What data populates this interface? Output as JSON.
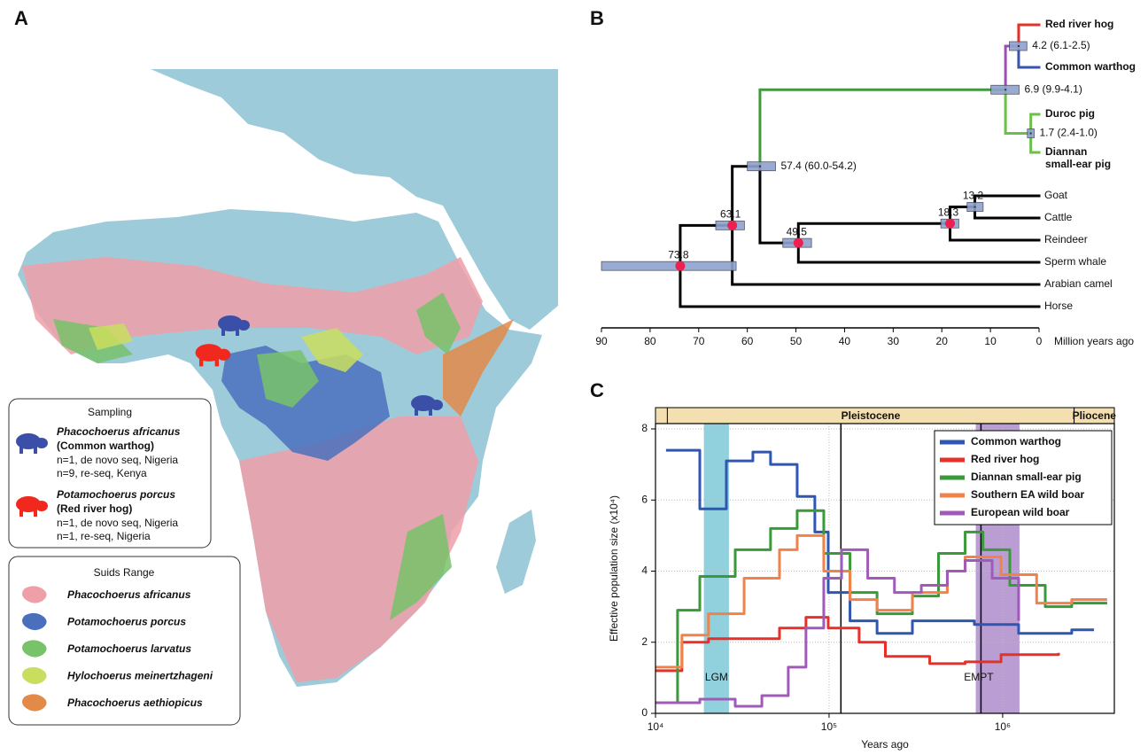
{
  "panel_a": {
    "label": "A",
    "sampling": {
      "title": "Sampling",
      "entries": [
        {
          "species": "Phacochoerus africanus",
          "common_name": "(Common warthog)",
          "color": "#3b4fa8",
          "lines": [
            "n=1, de novo seq, Nigeria",
            "n=9, re-seq, Kenya"
          ]
        },
        {
          "species": "Potamochoerus porcus",
          "common_name": "(Red river hog)",
          "color": "#f0281e",
          "lines": [
            "n=1, de novo seq, Nigeria",
            "n=1, re-seq, Nigeria"
          ]
        }
      ]
    },
    "range": {
      "title": "Suids Range",
      "entries": [
        {
          "name": "Phacochoerus africanus",
          "color": "#ee9fa8"
        },
        {
          "name": "Potamochoerus porcus",
          "color": "#4a70bd"
        },
        {
          "name": "Potamochoerus larvatus",
          "color": "#78c26a"
        },
        {
          "name": "Hylochoerus meinertzhageni",
          "color": "#c9de5e"
        },
        {
          "name": "Phacochoerus aethiopicus",
          "color": "#e38a48"
        }
      ]
    }
  },
  "panel_b": {
    "label": "B",
    "axis_label": "Million years ago",
    "xlim": [
      90,
      0
    ],
    "xticks": [
      90,
      80,
      70,
      60,
      50,
      40,
      30,
      20,
      10,
      0
    ],
    "taxa": [
      {
        "name": [
          "Red river hog"
        ],
        "bold": true,
        "color": "#e8302a"
      },
      {
        "name": [
          "Common warthog"
        ],
        "bold": true,
        "color": "#3a55a8"
      },
      {
        "name": [
          "Duroc pig"
        ],
        "bold": true,
        "color": "#6cbf4a"
      },
      {
        "name": [
          "Diannan",
          "small-ear pig"
        ],
        "bold": true,
        "color": "#6cbf4a"
      },
      {
        "name": [
          "Goat"
        ],
        "bold": false,
        "color": "#000000"
      },
      {
        "name": [
          "Cattle"
        ],
        "bold": false,
        "color": "#000000"
      },
      {
        "name": [
          "Reindeer"
        ],
        "bold": false,
        "color": "#000000"
      },
      {
        "name": [
          "Sperm whale"
        ],
        "bold": false,
        "color": "#000000"
      },
      {
        "name": [
          "Arabian camel"
        ],
        "bold": false,
        "color": "#000000"
      },
      {
        "name": [
          "Horse"
        ],
        "bold": false,
        "color": "#000000"
      }
    ],
    "nodes": [
      {
        "age": 4.2,
        "ci": [
          6.1,
          2.5
        ],
        "label": "4.2 (6.1-2.5)",
        "calibrated": false,
        "color": "#9b4fb0"
      },
      {
        "age": 1.7,
        "ci": [
          2.4,
          1.0
        ],
        "label": "1.7 (2.4-1.0)",
        "calibrated": false,
        "color": "#6cbf4a"
      },
      {
        "age": 6.9,
        "ci": [
          9.9,
          4.1
        ],
        "label": "6.9 (9.9-4.1)",
        "calibrated": false,
        "color": "#3f9a3f"
      },
      {
        "age": 13.2,
        "ci": [
          14.8,
          11.5
        ],
        "label": "13.2",
        "calibrated": false,
        "color": "#000000"
      },
      {
        "age": 18.3,
        "ci": [
          20.2,
          16.5
        ],
        "label": "18.3",
        "calibrated": true,
        "color": "#000000"
      },
      {
        "age": 49.5,
        "ci": [
          52.7,
          46.8
        ],
        "label": "49.5",
        "calibrated": true,
        "color": "#000000"
      },
      {
        "age": 57.4,
        "ci": [
          60.0,
          54.2
        ],
        "label": "57.4 (60.0-54.2)",
        "calibrated": false,
        "color": "#000000"
      },
      {
        "age": 63.1,
        "ci": [
          66.5,
          60.6
        ],
        "label": "63.1",
        "calibrated": true,
        "color": "#000000"
      },
      {
        "age": 73.8,
        "ci": [
          90.0,
          62.3
        ],
        "label": "73.8",
        "calibrated": true,
        "color": "#000000"
      }
    ]
  },
  "chart_data": {
    "type": "step",
    "label": "C",
    "x_label": "Years ago",
    "y_label": "Effective population size (x10⁴)",
    "log_x": true,
    "grid": true,
    "xlim": [
      10000,
      4400000
    ],
    "ylim": [
      0,
      8.15
    ],
    "xticks": [
      {
        "value": 10000,
        "label": "10⁴"
      },
      {
        "value": 100000,
        "label": "10⁵"
      },
      {
        "value": 1000000,
        "label": "10⁶"
      }
    ],
    "yticks": [
      0,
      2,
      4,
      6,
      8
    ],
    "epochs": [
      {
        "name": "Pleistocene",
        "start": 11700,
        "end": 2580000
      },
      {
        "name": "Pliocene",
        "start": 2580000,
        "end": 4400000
      }
    ],
    "bands": [
      {
        "label": "LGM",
        "start": 19000,
        "end": 26500,
        "color": "#6cc2d2"
      },
      {
        "label": "EMPT",
        "start": 700000,
        "end": 1250000,
        "color": "#a27cc4"
      }
    ],
    "reference_lines": [
      117000,
      750000
    ],
    "legend": "upper right",
    "series": [
      {
        "name": "Common warthog",
        "color": "#2f56b0",
        "x": [
          11500,
          18000,
          25600,
          36400,
          46000,
          65500,
          82800,
          98900,
          132000,
          189000,
          302000,
          687000,
          1236000,
          2500000,
          3360000
        ],
        "values": [
          7.4,
          5.75,
          7.1,
          7.35,
          7.0,
          6.1,
          5.1,
          3.4,
          2.6,
          2.25,
          2.6,
          2.5,
          2.25,
          2.35,
          2.35
        ]
      },
      {
        "name": "Red river hog",
        "color": "#e8302a",
        "x": [
          10000,
          14200,
          20200,
          51800,
          73600,
          98900,
          149000,
          211000,
          380000,
          608000,
          979000,
          2100000
        ],
        "values": [
          1.2,
          2.0,
          2.1,
          2.4,
          2.7,
          2.4,
          2.0,
          1.6,
          1.4,
          1.45,
          1.65,
          1.7
        ]
      },
      {
        "name": "Diannan small-ear pig",
        "color": "#3a9a3a",
        "x": [
          10000,
          13400,
          18000,
          28800,
          46000,
          65500,
          93200,
          132000,
          189000,
          302000,
          427000,
          608000,
          770000,
          1100000,
          1760000,
          2500000,
          4000000
        ],
        "values": [
          0.3,
          2.9,
          3.85,
          4.6,
          5.2,
          5.7,
          4.5,
          3.4,
          2.8,
          3.3,
          4.5,
          5.1,
          4.6,
          3.6,
          3.0,
          3.1,
          3.1
        ]
      },
      {
        "name": "Southern EA wild boar",
        "color": "#f0824a",
        "x": [
          10000,
          14200,
          20200,
          32400,
          51800,
          65500,
          93200,
          132000,
          189000,
          302000,
          480000,
          608000,
          979000,
          1570000,
          2500000,
          4000000
        ],
        "values": [
          1.3,
          2.2,
          2.8,
          3.8,
          4.6,
          5.0,
          4.0,
          3.2,
          2.9,
          3.4,
          4.0,
          4.4,
          3.9,
          3.1,
          3.2,
          3.2
        ]
      },
      {
        "name": "European wild boar",
        "color": "#a05bb8",
        "x": [
          10000,
          18000,
          28800,
          41000,
          58200,
          73600,
          93200,
          118000,
          167000,
          238000,
          340000,
          480000,
          608000,
          870000,
          1236000
        ],
        "values": [
          0.3,
          0.4,
          0.2,
          0.5,
          1.3,
          2.4,
          3.8,
          4.6,
          3.8,
          3.4,
          3.6,
          4.0,
          4.3,
          3.8,
          2.6
        ]
      }
    ]
  }
}
